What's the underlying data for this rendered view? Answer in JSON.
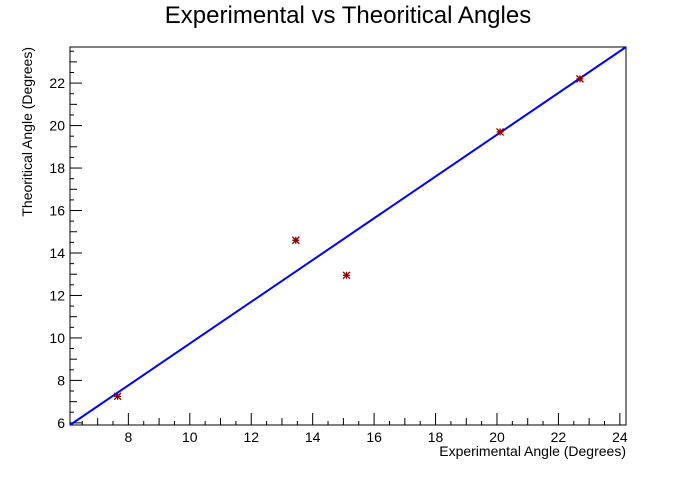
{
  "chart_data": {
    "type": "scatter",
    "title": "Experimental vs Theoritical Angles",
    "xlabel": "Experimental Angle (Degrees)",
    "ylabel": "Theoritical Angle (Degrees)",
    "xlim": [
      6.1,
      24.2
    ],
    "ylim": [
      5.9,
      23.7
    ],
    "grid": false,
    "legend": "none",
    "x_ticks": [
      8,
      10,
      12,
      14,
      16,
      18,
      20,
      22,
      24
    ],
    "x_tick_labels": [
      "8",
      "10",
      "12",
      "14",
      "16",
      "18",
      "20",
      "22",
      "24"
    ],
    "y_ticks": [
      6,
      8,
      10,
      12,
      14,
      16,
      18,
      20,
      22
    ],
    "y_tick_labels": [
      "6",
      "8",
      "10",
      "12",
      "14",
      "16",
      "18",
      "20",
      "22"
    ],
    "points": [
      {
        "x": 7.65,
        "y": 7.25
      },
      {
        "x": 13.45,
        "y": 14.6
      },
      {
        "x": 15.1,
        "y": 12.95
      },
      {
        "x": 20.1,
        "y": 19.7
      },
      {
        "x": 22.7,
        "y": 22.2
      }
    ],
    "fit_line": {
      "x": [
        6.1,
        24.2
      ],
      "y": [
        5.8,
        23.7
      ]
    },
    "colors": {
      "points": "#8b0000",
      "fit_line": "#0000ff",
      "axes": "#000000"
    }
  }
}
